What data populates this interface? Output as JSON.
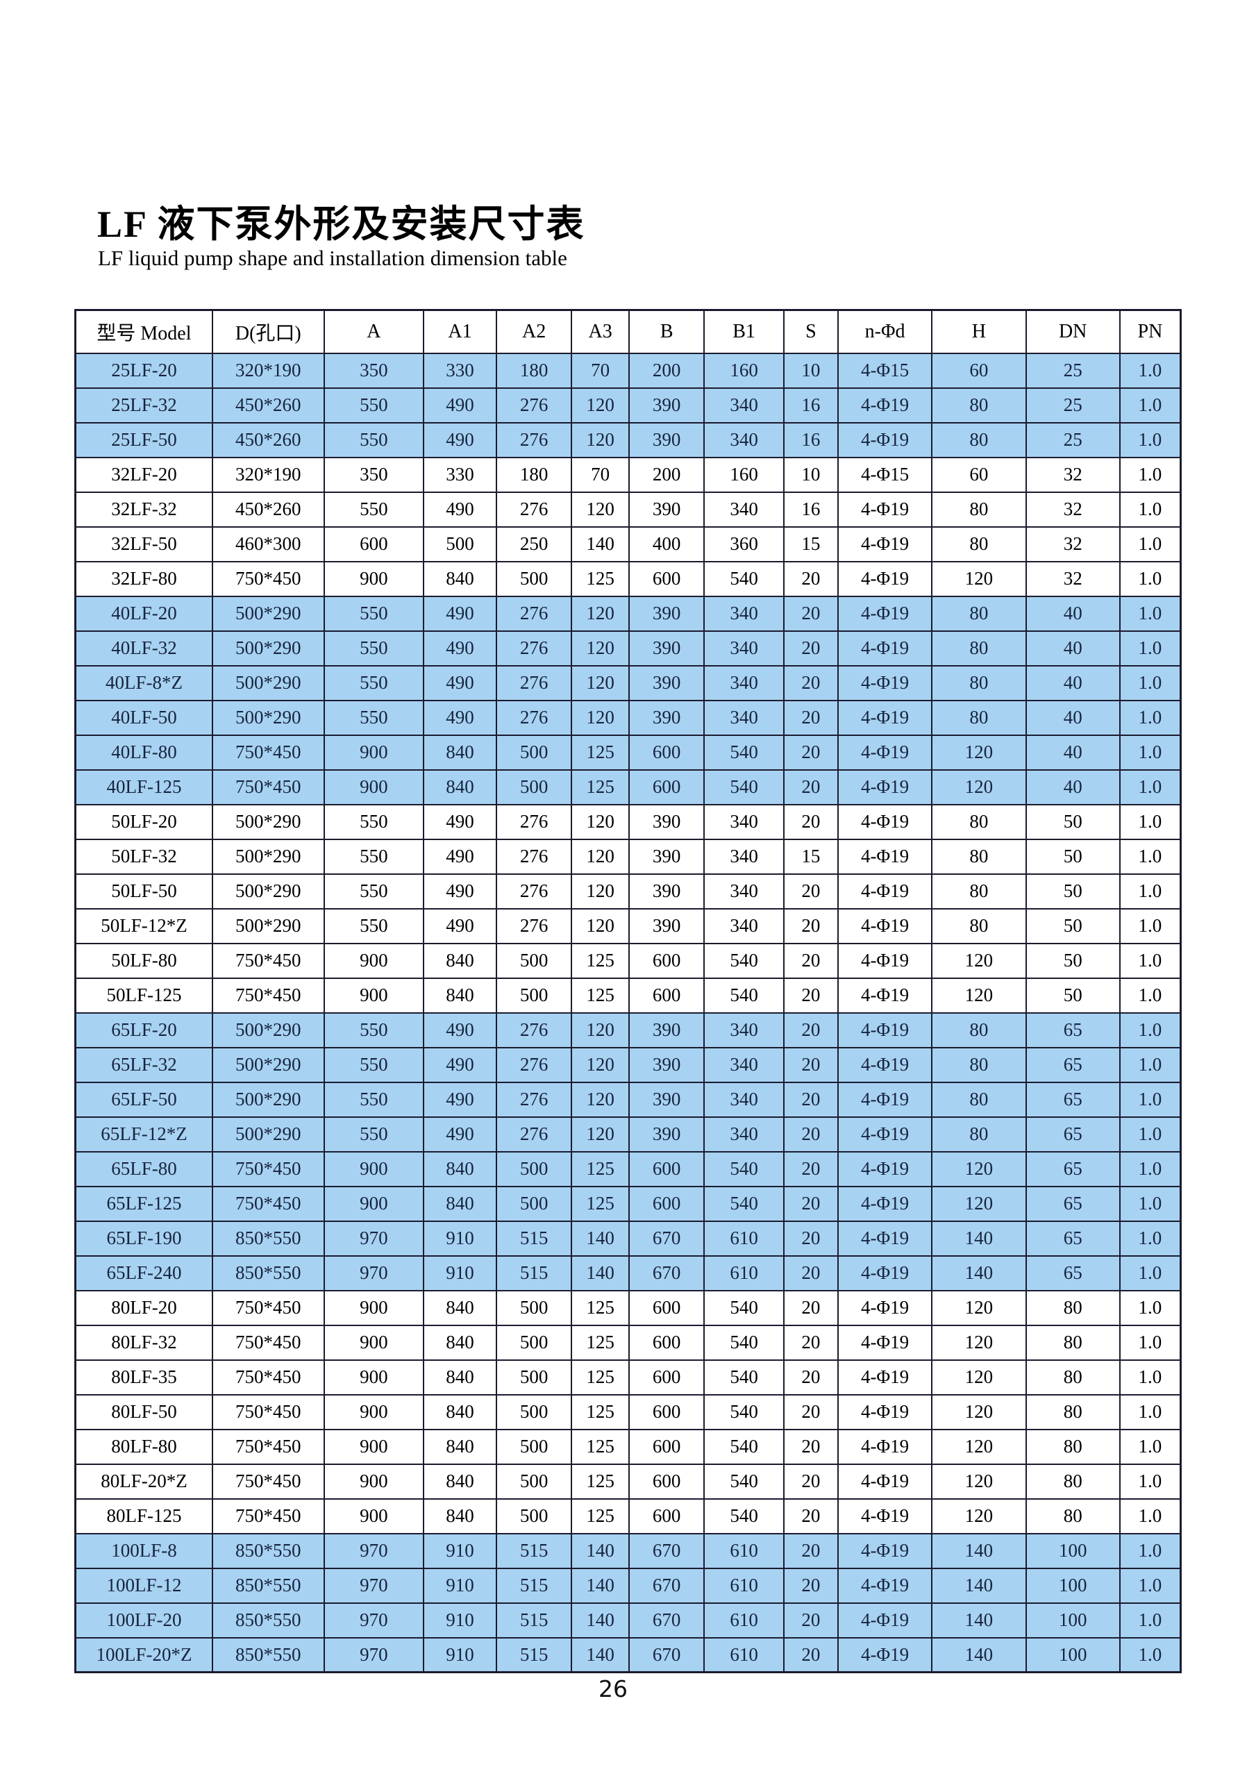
{
  "page": {
    "title": "LF 液下泵外形及安装尺寸表",
    "subtitle": "LF liquid pump shape and installation dimension table",
    "page_number": "26"
  },
  "colors": {
    "row_highlight": "#a8d2f2",
    "grid_border": "#1b1b2e",
    "highlight_text": "#16243e"
  },
  "table": {
    "columns": [
      "型号 Model",
      "D(孔口)",
      "A",
      "A1",
      "A2",
      "A3",
      "B",
      "B1",
      "S",
      "n-Φd",
      "H",
      "DN",
      "PN"
    ],
    "rows": [
      {
        "highlight": true,
        "cells": [
          "25LF-20",
          "320*190",
          "350",
          "330",
          "180",
          "70",
          "200",
          "160",
          "10",
          "4-Φ15",
          "60",
          "25",
          "1.0"
        ]
      },
      {
        "highlight": true,
        "cells": [
          "25LF-32",
          "450*260",
          "550",
          "490",
          "276",
          "120",
          "390",
          "340",
          "16",
          "4-Φ19",
          "80",
          "25",
          "1.0"
        ]
      },
      {
        "highlight": true,
        "cells": [
          "25LF-50",
          "450*260",
          "550",
          "490",
          "276",
          "120",
          "390",
          "340",
          "16",
          "4-Φ19",
          "80",
          "25",
          "1.0"
        ]
      },
      {
        "highlight": false,
        "cells": [
          "32LF-20",
          "320*190",
          "350",
          "330",
          "180",
          "70",
          "200",
          "160",
          "10",
          "4-Φ15",
          "60",
          "32",
          "1.0"
        ]
      },
      {
        "highlight": false,
        "cells": [
          "32LF-32",
          "450*260",
          "550",
          "490",
          "276",
          "120",
          "390",
          "340",
          "16",
          "4-Φ19",
          "80",
          "32",
          "1.0"
        ]
      },
      {
        "highlight": false,
        "cells": [
          "32LF-50",
          "460*300",
          "600",
          "500",
          "250",
          "140",
          "400",
          "360",
          "15",
          "4-Φ19",
          "80",
          "32",
          "1.0"
        ]
      },
      {
        "highlight": false,
        "cells": [
          "32LF-80",
          "750*450",
          "900",
          "840",
          "500",
          "125",
          "600",
          "540",
          "20",
          "4-Φ19",
          "120",
          "32",
          "1.0"
        ]
      },
      {
        "highlight": true,
        "cells": [
          "40LF-20",
          "500*290",
          "550",
          "490",
          "276",
          "120",
          "390",
          "340",
          "20",
          "4-Φ19",
          "80",
          "40",
          "1.0"
        ]
      },
      {
        "highlight": true,
        "cells": [
          "40LF-32",
          "500*290",
          "550",
          "490",
          "276",
          "120",
          "390",
          "340",
          "20",
          "4-Φ19",
          "80",
          "40",
          "1.0"
        ]
      },
      {
        "highlight": true,
        "cells": [
          "40LF-8*Z",
          "500*290",
          "550",
          "490",
          "276",
          "120",
          "390",
          "340",
          "20",
          "4-Φ19",
          "80",
          "40",
          "1.0"
        ]
      },
      {
        "highlight": true,
        "cells": [
          "40LF-50",
          "500*290",
          "550",
          "490",
          "276",
          "120",
          "390",
          "340",
          "20",
          "4-Φ19",
          "80",
          "40",
          "1.0"
        ]
      },
      {
        "highlight": true,
        "cells": [
          "40LF-80",
          "750*450",
          "900",
          "840",
          "500",
          "125",
          "600",
          "540",
          "20",
          "4-Φ19",
          "120",
          "40",
          "1.0"
        ]
      },
      {
        "highlight": true,
        "cells": [
          "40LF-125",
          "750*450",
          "900",
          "840",
          "500",
          "125",
          "600",
          "540",
          "20",
          "4-Φ19",
          "120",
          "40",
          "1.0"
        ]
      },
      {
        "highlight": false,
        "cells": [
          "50LF-20",
          "500*290",
          "550",
          "490",
          "276",
          "120",
          "390",
          "340",
          "20",
          "4-Φ19",
          "80",
          "50",
          "1.0"
        ]
      },
      {
        "highlight": false,
        "cells": [
          "50LF-32",
          "500*290",
          "550",
          "490",
          "276",
          "120",
          "390",
          "340",
          "15",
          "4-Φ19",
          "80",
          "50",
          "1.0"
        ]
      },
      {
        "highlight": false,
        "cells": [
          "50LF-50",
          "500*290",
          "550",
          "490",
          "276",
          "120",
          "390",
          "340",
          "20",
          "4-Φ19",
          "80",
          "50",
          "1.0"
        ]
      },
      {
        "highlight": false,
        "cells": [
          "50LF-12*Z",
          "500*290",
          "550",
          "490",
          "276",
          "120",
          "390",
          "340",
          "20",
          "4-Φ19",
          "80",
          "50",
          "1.0"
        ]
      },
      {
        "highlight": false,
        "cells": [
          "50LF-80",
          "750*450",
          "900",
          "840",
          "500",
          "125",
          "600",
          "540",
          "20",
          "4-Φ19",
          "120",
          "50",
          "1.0"
        ]
      },
      {
        "highlight": false,
        "cells": [
          "50LF-125",
          "750*450",
          "900",
          "840",
          "500",
          "125",
          "600",
          "540",
          "20",
          "4-Φ19",
          "120",
          "50",
          "1.0"
        ]
      },
      {
        "highlight": true,
        "cells": [
          "65LF-20",
          "500*290",
          "550",
          "490",
          "276",
          "120",
          "390",
          "340",
          "20",
          "4-Φ19",
          "80",
          "65",
          "1.0"
        ]
      },
      {
        "highlight": true,
        "cells": [
          "65LF-32",
          "500*290",
          "550",
          "490",
          "276",
          "120",
          "390",
          "340",
          "20",
          "4-Φ19",
          "80",
          "65",
          "1.0"
        ]
      },
      {
        "highlight": true,
        "cells": [
          "65LF-50",
          "500*290",
          "550",
          "490",
          "276",
          "120",
          "390",
          "340",
          "20",
          "4-Φ19",
          "80",
          "65",
          "1.0"
        ]
      },
      {
        "highlight": true,
        "cells": [
          "65LF-12*Z",
          "500*290",
          "550",
          "490",
          "276",
          "120",
          "390",
          "340",
          "20",
          "4-Φ19",
          "80",
          "65",
          "1.0"
        ]
      },
      {
        "highlight": true,
        "cells": [
          "65LF-80",
          "750*450",
          "900",
          "840",
          "500",
          "125",
          "600",
          "540",
          "20",
          "4-Φ19",
          "120",
          "65",
          "1.0"
        ]
      },
      {
        "highlight": true,
        "cells": [
          "65LF-125",
          "750*450",
          "900",
          "840",
          "500",
          "125",
          "600",
          "540",
          "20",
          "4-Φ19",
          "120",
          "65",
          "1.0"
        ]
      },
      {
        "highlight": true,
        "cells": [
          "65LF-190",
          "850*550",
          "970",
          "910",
          "515",
          "140",
          "670",
          "610",
          "20",
          "4-Φ19",
          "140",
          "65",
          "1.0"
        ]
      },
      {
        "highlight": true,
        "cells": [
          "65LF-240",
          "850*550",
          "970",
          "910",
          "515",
          "140",
          "670",
          "610",
          "20",
          "4-Φ19",
          "140",
          "65",
          "1.0"
        ]
      },
      {
        "highlight": false,
        "cells": [
          "80LF-20",
          "750*450",
          "900",
          "840",
          "500",
          "125",
          "600",
          "540",
          "20",
          "4-Φ19",
          "120",
          "80",
          "1.0"
        ]
      },
      {
        "highlight": false,
        "cells": [
          "80LF-32",
          "750*450",
          "900",
          "840",
          "500",
          "125",
          "600",
          "540",
          "20",
          "4-Φ19",
          "120",
          "80",
          "1.0"
        ]
      },
      {
        "highlight": false,
        "cells": [
          "80LF-35",
          "750*450",
          "900",
          "840",
          "500",
          "125",
          "600",
          "540",
          "20",
          "4-Φ19",
          "120",
          "80",
          "1.0"
        ]
      },
      {
        "highlight": false,
        "cells": [
          "80LF-50",
          "750*450",
          "900",
          "840",
          "500",
          "125",
          "600",
          "540",
          "20",
          "4-Φ19",
          "120",
          "80",
          "1.0"
        ]
      },
      {
        "highlight": false,
        "cells": [
          "80LF-80",
          "750*450",
          "900",
          "840",
          "500",
          "125",
          "600",
          "540",
          "20",
          "4-Φ19",
          "120",
          "80",
          "1.0"
        ]
      },
      {
        "highlight": false,
        "cells": [
          "80LF-20*Z",
          "750*450",
          "900",
          "840",
          "500",
          "125",
          "600",
          "540",
          "20",
          "4-Φ19",
          "120",
          "80",
          "1.0"
        ]
      },
      {
        "highlight": false,
        "cells": [
          "80LF-125",
          "750*450",
          "900",
          "840",
          "500",
          "125",
          "600",
          "540",
          "20",
          "4-Φ19",
          "120",
          "80",
          "1.0"
        ]
      },
      {
        "highlight": true,
        "cells": [
          "100LF-8",
          "850*550",
          "970",
          "910",
          "515",
          "140",
          "670",
          "610",
          "20",
          "4-Φ19",
          "140",
          "100",
          "1.0"
        ]
      },
      {
        "highlight": true,
        "cells": [
          "100LF-12",
          "850*550",
          "970",
          "910",
          "515",
          "140",
          "670",
          "610",
          "20",
          "4-Φ19",
          "140",
          "100",
          "1.0"
        ]
      },
      {
        "highlight": true,
        "cells": [
          "100LF-20",
          "850*550",
          "970",
          "910",
          "515",
          "140",
          "670",
          "610",
          "20",
          "4-Φ19",
          "140",
          "100",
          "1.0"
        ]
      },
      {
        "highlight": true,
        "cells": [
          "100LF-20*Z",
          "850*550",
          "970",
          "910",
          "515",
          "140",
          "670",
          "610",
          "20",
          "4-Φ19",
          "140",
          "100",
          "1.0"
        ]
      }
    ]
  }
}
